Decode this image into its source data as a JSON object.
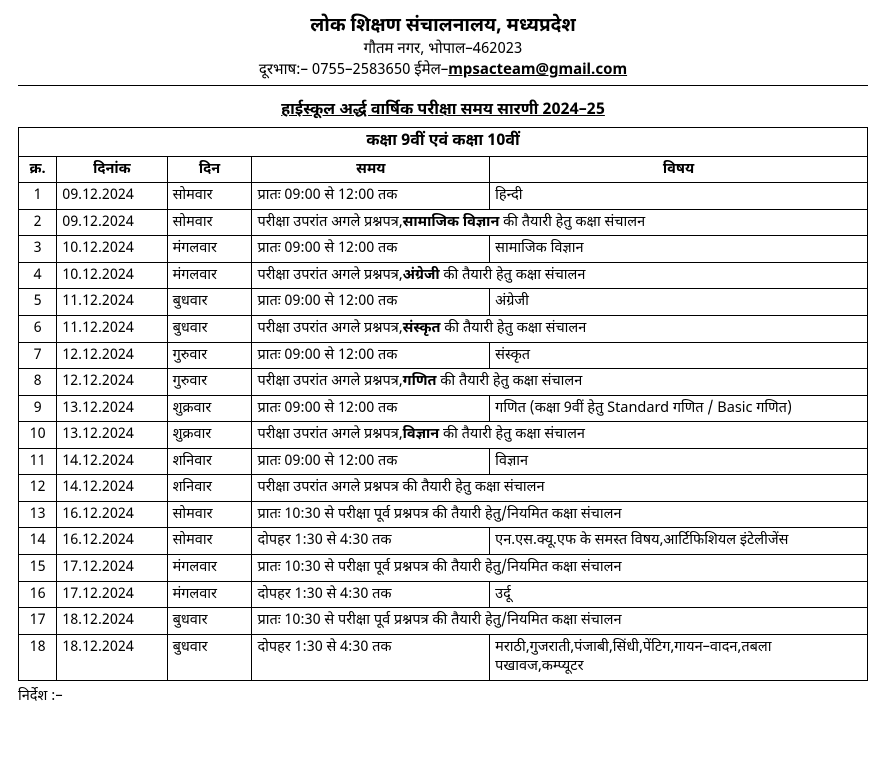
{
  "header": {
    "org_title": "लोक शिक्षण संचालनालय, मध्यप्रदेश",
    "org_address": "गौतम नगर, भोपाल–462023",
    "phone_prefix": "दूरभाष:– 0755–2583650 ईमेल–",
    "email": "mpsacteam@gmail.com"
  },
  "exam_title": "हाईस्कूल अर्द्ध वार्षिक परीक्षा समय सारणी 2024–25",
  "class_header": "कक्षा 9वीं एवं कक्षा 10वीं",
  "columns": {
    "sn": "क्र.",
    "date": "दिनांक",
    "day": "दिन",
    "time": "समय",
    "subject": "विषय"
  },
  "rows": [
    {
      "sn": "1",
      "date": "09.12.2024",
      "day": "सोमवार",
      "time": "प्रातः 09:00 से 12:00 तक",
      "subject": "हिन्दी",
      "merged": false
    },
    {
      "sn": "2",
      "date": "09.12.2024",
      "day": "सोमवार",
      "merged": true,
      "merged_pre": "परीक्षा उपरांत अगले प्रश्नपत्र,",
      "merged_bold": "सामाजिक विज्ञान",
      "merged_post": " की तैयारी हेतु कक्षा संचालन"
    },
    {
      "sn": "3",
      "date": "10.12.2024",
      "day": "मंगलवार",
      "time": "प्रातः 09:00 से 12:00 तक",
      "subject": "सामाजिक विज्ञान",
      "merged": false
    },
    {
      "sn": "4",
      "date": "10.12.2024",
      "day": "मंगलवार",
      "merged": true,
      "merged_pre": "परीक्षा उपरांत अगले प्रश्नपत्र,",
      "merged_bold": "अंग्रेजी",
      "merged_post": " की तैयारी हेतु कक्षा संचालन"
    },
    {
      "sn": "5",
      "date": "11.12.2024",
      "day": "बुधवार",
      "time": "प्रातः 09:00 से 12:00 तक",
      "subject": "अंग्रेजी",
      "merged": false
    },
    {
      "sn": "6",
      "date": "11.12.2024",
      "day": "बुधवार",
      "merged": true,
      "merged_pre": "परीक्षा उपरांत अगले प्रश्नपत्र,",
      "merged_bold": "संस्कृत",
      "merged_post": " की तैयारी हेतु कक्षा संचालन"
    },
    {
      "sn": "7",
      "date": "12.12.2024",
      "day": "गुरुवार",
      "time": "प्रातः 09:00 से 12:00 तक",
      "subject": "संस्कृत",
      "merged": false
    },
    {
      "sn": "8",
      "date": "12.12.2024",
      "day": "गुरुवार",
      "merged": true,
      "merged_pre": "परीक्षा उपरांत अगले प्रश्नपत्र,",
      "merged_bold": "गणित",
      "merged_post": " की तैयारी हेतु कक्षा संचालन"
    },
    {
      "sn": "9",
      "date": "13.12.2024",
      "day": "शुक्रवार",
      "time": "प्रातः 09:00 से 12:00 तक",
      "subject": "गणित (कक्षा 9वीं हेतु Standard गणित / Basic गणित)",
      "merged": false
    },
    {
      "sn": "10",
      "date": "13.12.2024",
      "day": "शुक्रवार",
      "merged": true,
      "merged_pre": "परीक्षा उपरांत अगले प्रश्नपत्र,",
      "merged_bold": "विज्ञान",
      "merged_post": " की तैयारी हेतु कक्षा संचालन"
    },
    {
      "sn": "11",
      "date": "14.12.2024",
      "day": "शनिवार",
      "time": "प्रातः 09:00 से 12:00 तक",
      "subject": "विज्ञान",
      "merged": false
    },
    {
      "sn": "12",
      "date": "14.12.2024",
      "day": "शनिवार",
      "merged": true,
      "merged_pre": "परीक्षा उपरांत अगले प्रश्नपत्र की तैयारी हेतु कक्षा संचालन",
      "merged_bold": "",
      "merged_post": ""
    },
    {
      "sn": "13",
      "date": "16.12.2024",
      "day": "सोमवार",
      "merged": true,
      "merged_pre": "प्रातः 10:30 से परीक्षा पूर्व प्रश्नपत्र की तैयारी हेतु/नियमित कक्षा संचालन",
      "merged_bold": "",
      "merged_post": ""
    },
    {
      "sn": "14",
      "date": "16.12.2024",
      "day": "सोमवार",
      "time": "दोपहर 1:30 से 4:30 तक",
      "subject": "एन.एस.क्यू.एफ के समस्त विषय,आर्टिफिशियल इंटेलीजेंस",
      "merged": false
    },
    {
      "sn": "15",
      "date": "17.12.2024",
      "day": "मंगलवार",
      "merged": true,
      "merged_pre": "प्रातः 10:30 से परीक्षा पूर्व प्रश्नपत्र की तैयारी हेतु/नियमित कक्षा संचालन",
      "merged_bold": "",
      "merged_post": ""
    },
    {
      "sn": "16",
      "date": "17.12.2024",
      "day": "मंगलवार",
      "time": "दोपहर 1:30 से 4:30 तक",
      "subject": "उर्दू",
      "merged": false
    },
    {
      "sn": "17",
      "date": "18.12.2024",
      "day": "बुधवार",
      "merged": true,
      "merged_pre": "प्रातः 10:30 से परीक्षा पूर्व प्रश्नपत्र की तैयारी हेतु/नियमित कक्षा संचालन",
      "merged_bold": "",
      "merged_post": ""
    },
    {
      "sn": "18",
      "date": "18.12.2024",
      "day": "बुधवार",
      "time": "दोपहर 1:30 से 4:30 तक",
      "subject": "मराठी,गुजराती,पंजाबी,सिंधी,पेंटिग,गायन–वादन,तबला पखावज,कम्प्यूटर",
      "merged": false
    }
  ],
  "footer_note": "निर्देश :–"
}
